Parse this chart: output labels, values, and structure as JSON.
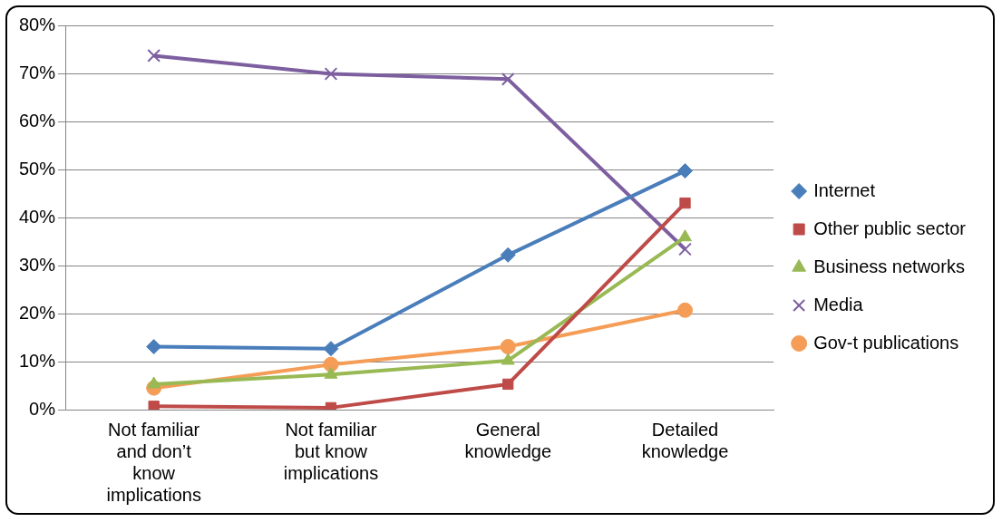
{
  "chart_data": {
    "type": "line",
    "categories": [
      "Not familiar and don’t know implications",
      "Not familiar but know implications",
      "General knowledge",
      "Detailed knowledge"
    ],
    "series": [
      {
        "name": "Internet",
        "color": "#4a7ebb",
        "marker": "diamond",
        "values": [
          13.1,
          12.7,
          32.2,
          49.7
        ]
      },
      {
        "name": "Other public sector",
        "color": "#be4b48",
        "marker": "square",
        "values": [
          0.7,
          0.4,
          5.3,
          43.0
        ]
      },
      {
        "name": "Business networks",
        "color": "#98b954",
        "marker": "triangle",
        "values": [
          5.3,
          7.3,
          10.2,
          35.9
        ]
      },
      {
        "name": "Media",
        "color": "#7d5fa0",
        "marker": "cross",
        "values": [
          73.7,
          69.9,
          68.8,
          33.4
        ]
      },
      {
        "name": "Gov-t publications",
        "color": "#f59d56",
        "marker": "circle",
        "values": [
          4.5,
          9.4,
          13.1,
          20.7
        ]
      }
    ],
    "ylim": [
      0,
      80
    ],
    "yticks": [
      {
        "value": 0,
        "label": "0%"
      },
      {
        "value": 10,
        "label": "10%"
      },
      {
        "value": 20,
        "label": "20%"
      },
      {
        "value": 30,
        "label": "30%"
      },
      {
        "value": 40,
        "label": "40%"
      },
      {
        "value": 50,
        "label": "50%"
      },
      {
        "value": 60,
        "label": "60%"
      },
      {
        "value": 70,
        "label": "70%"
      },
      {
        "value": 80,
        "label": "80%"
      }
    ],
    "grid": "y",
    "legend": "right"
  }
}
